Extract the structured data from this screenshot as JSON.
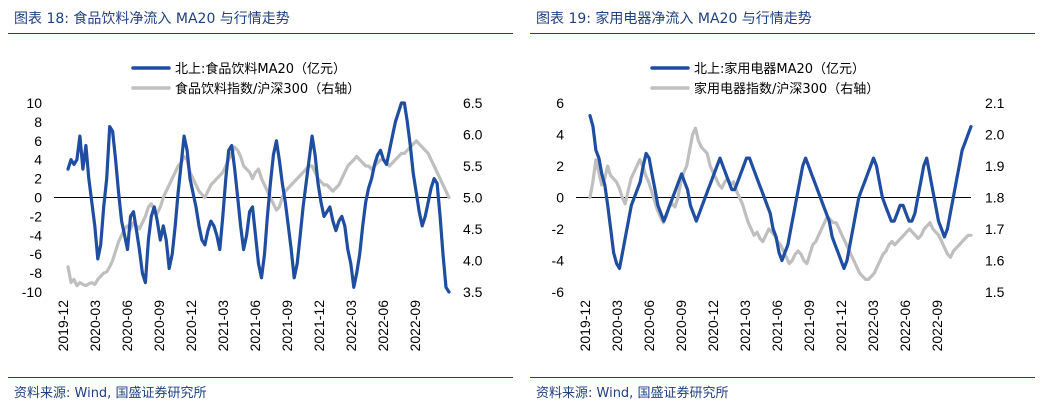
{
  "colors": {
    "accent": "#1f3f7f",
    "series_primary": "#1f4ea1",
    "series_secondary": "#bfbfbf"
  },
  "charts": [
    {
      "fig_title": "图表 18:  食品饮料净流入 MA20 与行情走势",
      "source": "资料来源:  Wind, 国盛证券研究所"
    },
    {
      "fig_title": "图表 19:  家用电器净流入 MA20 与行情走势",
      "source": "资料来源:  Wind, 国盛证券研究所"
    }
  ],
  "chart_data": [
    {
      "type": "line",
      "title": "食品饮料净流入 MA20 与行情走势",
      "x_tick_labels": [
        "2019-12",
        "2020-03",
        "2020-06",
        "2020-09",
        "2020-12",
        "2021-03",
        "2021-06",
        "2021-09",
        "2021-12",
        "2022-03",
        "2022-06",
        "2022-09"
      ],
      "x_range": [
        "2019-12",
        "2022-10"
      ],
      "ylim_left": [
        -10,
        10
      ],
      "yticks_left": [
        -10,
        -8,
        -6,
        -4,
        -2,
        0,
        2,
        4,
        6,
        8,
        10
      ],
      "ylim_right": [
        3.5,
        6.5
      ],
      "yticks_right": [
        3.5,
        4.0,
        4.5,
        5.0,
        5.5,
        6.0,
        6.5
      ],
      "legend_position": "top-center",
      "series": [
        {
          "name": "北上:食品饮料MA20（亿元）",
          "axis": "left",
          "values": [
            3.0,
            4.0,
            3.5,
            4.0,
            6.5,
            3.0,
            5.5,
            2.0,
            -0.5,
            -3.0,
            -6.5,
            -5.0,
            -1.0,
            2.0,
            7.5,
            7.0,
            4.0,
            0.5,
            -2.5,
            -4.0,
            -5.5,
            -2.0,
            -1.5,
            -3.5,
            -5.5,
            -8.0,
            -9.0,
            -4.5,
            -2.0,
            -1.0,
            -2.5,
            -4.5,
            -3.0,
            -4.5,
            -7.5,
            -6.0,
            -3.0,
            0.5,
            3.5,
            6.5,
            5.0,
            2.0,
            0.5,
            -1.0,
            -3.0,
            -4.5,
            -5.0,
            -3.5,
            -2.5,
            -3.0,
            -4.0,
            -5.5,
            -2.0,
            2.0,
            5.0,
            5.5,
            3.0,
            0.0,
            -3.0,
            -5.5,
            -4.0,
            -1.5,
            -1.0,
            -4.0,
            -7.0,
            -8.5,
            -6.0,
            -2.0,
            1.5,
            4.5,
            6.0,
            4.0,
            1.5,
            -0.5,
            -3.0,
            -5.5,
            -8.5,
            -7.0,
            -4.0,
            -1.0,
            1.5,
            4.0,
            6.5,
            4.5,
            1.5,
            -0.5,
            -2.0,
            -1.5,
            -1.0,
            -2.5,
            -3.5,
            -2.5,
            -2.0,
            -3.0,
            -5.5,
            -7.0,
            -9.5,
            -8.0,
            -6.0,
            -3.0,
            -0.5,
            1.0,
            2.0,
            3.5,
            4.5,
            5.0,
            4.0,
            3.5,
            5.0,
            6.5,
            8.0,
            9.0,
            10.0,
            10.0,
            8.0,
            5.5,
            2.5,
            0.5,
            -1.5,
            -3.0,
            -2.0,
            -0.5,
            1.0,
            2.0,
            1.5,
            -2.0,
            -6.0,
            -9.5,
            -10.0
          ]
        },
        {
          "name": "食品饮料指数/沪深300（右轴）",
          "axis": "right",
          "values": [
            3.9,
            3.65,
            3.7,
            3.6,
            3.65,
            3.62,
            3.6,
            3.63,
            3.65,
            3.62,
            3.7,
            3.75,
            3.8,
            3.82,
            3.9,
            4.0,
            4.15,
            4.3,
            4.4,
            4.5,
            4.55,
            4.5,
            4.6,
            4.55,
            4.5,
            4.6,
            4.7,
            4.85,
            4.9,
            4.8,
            4.75,
            4.85,
            5.0,
            5.1,
            5.2,
            5.3,
            5.4,
            5.5,
            5.55,
            5.65,
            5.6,
            5.4,
            5.3,
            5.2,
            5.1,
            5.05,
            5.0,
            5.1,
            5.2,
            5.25,
            5.3,
            5.35,
            5.4,
            5.5,
            5.6,
            5.7,
            5.8,
            5.75,
            5.65,
            5.5,
            5.45,
            5.4,
            5.3,
            5.4,
            5.45,
            5.3,
            5.2,
            5.1,
            5.0,
            4.9,
            4.8,
            4.85,
            5.0,
            5.1,
            5.15,
            5.2,
            5.25,
            5.3,
            5.35,
            5.4,
            5.45,
            5.5,
            5.5,
            5.4,
            5.3,
            5.25,
            5.2,
            5.2,
            5.15,
            5.1,
            5.15,
            5.2,
            5.3,
            5.4,
            5.5,
            5.55,
            5.6,
            5.65,
            5.6,
            5.55,
            5.5,
            5.5,
            5.45,
            5.5,
            5.55,
            5.6,
            5.6,
            5.55,
            5.5,
            5.55,
            5.6,
            5.65,
            5.7,
            5.7,
            5.75,
            5.8,
            5.85,
            5.9,
            5.85,
            5.8,
            5.75,
            5.7,
            5.6,
            5.5,
            5.4,
            5.3,
            5.2,
            5.1,
            5.0
          ]
        }
      ]
    },
    {
      "type": "line",
      "title": "家用电器净流入 MA20 与行情走势",
      "x_tick_labels": [
        "2019-12",
        "2020-03",
        "2020-06",
        "2020-09",
        "2020-12",
        "2021-03",
        "2021-06",
        "2021-09",
        "2021-12",
        "2022-03",
        "2022-06",
        "2022-09"
      ],
      "x_range": [
        "2019-12",
        "2022-10"
      ],
      "ylim_left": [
        -6,
        6
      ],
      "yticks_left": [
        -6,
        -4,
        -2,
        0,
        2,
        4,
        6
      ],
      "ylim_right": [
        1.5,
        2.1
      ],
      "yticks_right": [
        1.5,
        1.6,
        1.7,
        1.8,
        1.9,
        2.0,
        2.1
      ],
      "legend_position": "top-center",
      "series": [
        {
          "name": "北上:家用电器MA20（亿元）",
          "axis": "left",
          "values": [
            5.2,
            4.5,
            3.0,
            2.5,
            1.5,
            0.8,
            -0.5,
            -2.0,
            -3.5,
            -4.2,
            -4.5,
            -3.5,
            -2.5,
            -1.5,
            -0.5,
            0.0,
            0.5,
            1.0,
            2.0,
            2.8,
            2.5,
            1.5,
            0.5,
            -0.5,
            -1.0,
            -1.5,
            -1.0,
            -0.5,
            0.0,
            0.5,
            1.0,
            1.5,
            1.0,
            0.5,
            -0.5,
            -1.0,
            -1.5,
            -1.0,
            -0.5,
            0.0,
            0.5,
            1.0,
            1.5,
            2.0,
            2.5,
            2.0,
            1.5,
            1.0,
            0.5,
            0.5,
            1.0,
            1.5,
            2.0,
            2.5,
            2.5,
            2.0,
            1.5,
            1.0,
            0.5,
            0.0,
            -0.5,
            -1.0,
            -2.0,
            -2.5,
            -3.5,
            -4.0,
            -3.5,
            -3.0,
            -2.0,
            -1.0,
            0.0,
            1.0,
            2.0,
            2.5,
            2.0,
            1.5,
            1.0,
            0.5,
            0.0,
            -0.5,
            -1.0,
            -1.5,
            -2.5,
            -3.0,
            -3.5,
            -4.0,
            -4.5,
            -4.0,
            -3.0,
            -2.0,
            -1.0,
            0.0,
            0.5,
            1.0,
            1.5,
            2.0,
            2.5,
            2.0,
            1.0,
            0.0,
            -0.5,
            -1.0,
            -1.5,
            -1.5,
            -1.0,
            -0.5,
            -0.5,
            -1.0,
            -1.5,
            -1.5,
            -1.0,
            0.0,
            1.0,
            2.0,
            2.5,
            1.5,
            0.5,
            -0.5,
            -1.5,
            -2.0,
            -2.5,
            -2.0,
            -1.0,
            0.0,
            1.0,
            2.0,
            3.0,
            3.5,
            4.0,
            4.5
          ]
        },
        {
          "name": "家用电器指数/沪深300（右轴）",
          "axis": "right",
          "values": [
            1.8,
            1.85,
            1.92,
            1.88,
            1.84,
            1.86,
            1.9,
            1.87,
            1.86,
            1.85,
            1.83,
            1.8,
            1.78,
            1.82,
            1.86,
            1.88,
            1.9,
            1.92,
            1.9,
            1.87,
            1.85,
            1.82,
            1.79,
            1.76,
            1.74,
            1.72,
            1.74,
            1.77,
            1.78,
            1.77,
            1.8,
            1.85,
            1.88,
            1.9,
            1.95,
            2.0,
            2.02,
            1.98,
            1.96,
            1.95,
            1.94,
            1.9,
            1.88,
            1.86,
            1.84,
            1.83,
            1.85,
            1.86,
            1.84,
            1.85,
            1.82,
            1.8,
            1.78,
            1.75,
            1.72,
            1.7,
            1.68,
            1.69,
            1.67,
            1.66,
            1.68,
            1.7,
            1.69,
            1.68,
            1.66,
            1.65,
            1.63,
            1.61,
            1.59,
            1.6,
            1.62,
            1.63,
            1.62,
            1.6,
            1.59,
            1.62,
            1.65,
            1.66,
            1.68,
            1.7,
            1.72,
            1.74,
            1.73,
            1.72,
            1.72,
            1.7,
            1.68,
            1.66,
            1.64,
            1.62,
            1.6,
            1.58,
            1.56,
            1.55,
            1.54,
            1.54,
            1.55,
            1.56,
            1.58,
            1.6,
            1.62,
            1.63,
            1.65,
            1.66,
            1.65,
            1.66,
            1.67,
            1.68,
            1.69,
            1.7,
            1.69,
            1.68,
            1.67,
            1.68,
            1.7,
            1.71,
            1.72,
            1.7,
            1.69,
            1.68,
            1.66,
            1.64,
            1.62,
            1.61,
            1.63,
            1.64,
            1.65,
            1.66,
            1.67,
            1.68,
            1.68
          ]
        }
      ]
    }
  ]
}
